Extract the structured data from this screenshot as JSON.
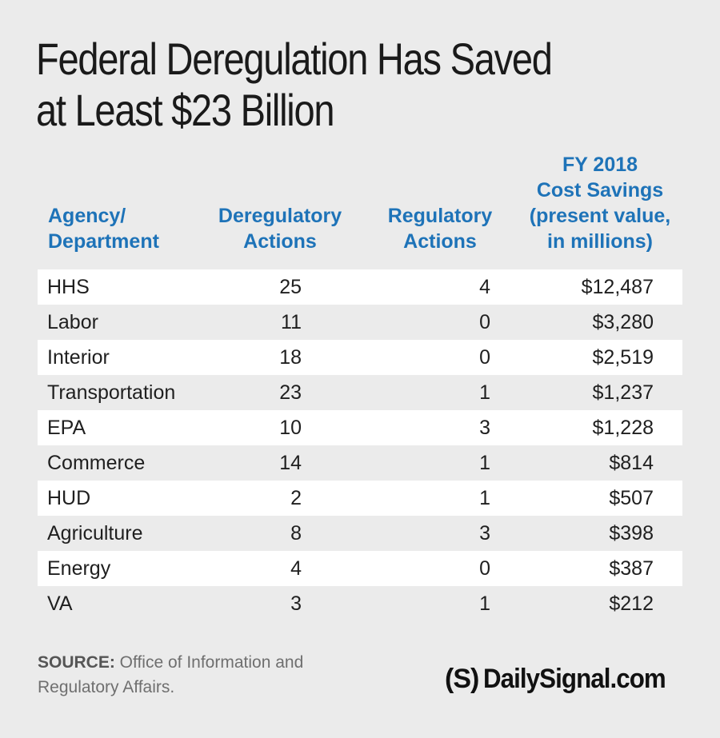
{
  "title": "Federal Deregulation Has Saved at Least $23 Billion",
  "title_line1": "Federal Deregulation Has Saved",
  "title_line2": "at Least $23 Billion",
  "headers": {
    "agency_1": "Agency/",
    "agency_2": "Department",
    "dereg_1": "Deregulatory",
    "dereg_2": "Actions",
    "reg_1": "Regulatory",
    "reg_2": "Actions",
    "cost_1": "FY 2018",
    "cost_2": "Cost Savings",
    "cost_3": "(present value,",
    "cost_4": "in millions)"
  },
  "chart_data": {
    "type": "table",
    "title": "Federal Deregulation Has Saved at Least $23 Billion",
    "columns": [
      "Agency/ Department",
      "Deregulatory Actions",
      "Regulatory Actions",
      "FY 2018 Cost Savings (present value, in millions)"
    ],
    "rows": [
      [
        "HHS",
        "25",
        "4",
        "$12,487"
      ],
      [
        "Labor",
        "11",
        "0",
        "$3,280"
      ],
      [
        "Interior",
        "18",
        "0",
        "$2,519"
      ],
      [
        "Transportation",
        "23",
        "1",
        "$1,237"
      ],
      [
        "EPA",
        "10",
        "3",
        "$1,228"
      ],
      [
        "Commerce",
        "14",
        "1",
        "$814"
      ],
      [
        "HUD",
        "2",
        "1",
        "$507"
      ],
      [
        "Agriculture",
        "8",
        "3",
        "$398"
      ],
      [
        "Energy",
        "4",
        "0",
        "$387"
      ],
      [
        "VA",
        "3",
        "1",
        "$212"
      ]
    ]
  },
  "source": {
    "label": "SOURCE:",
    "text": " Office of Information and Regulatory Affairs."
  },
  "logo": {
    "mark": "(S)",
    "name": "DailySignal.com"
  },
  "colors": {
    "header": "#1e73b8",
    "background": "#ebebeb",
    "row_alt": "#ffffff"
  }
}
